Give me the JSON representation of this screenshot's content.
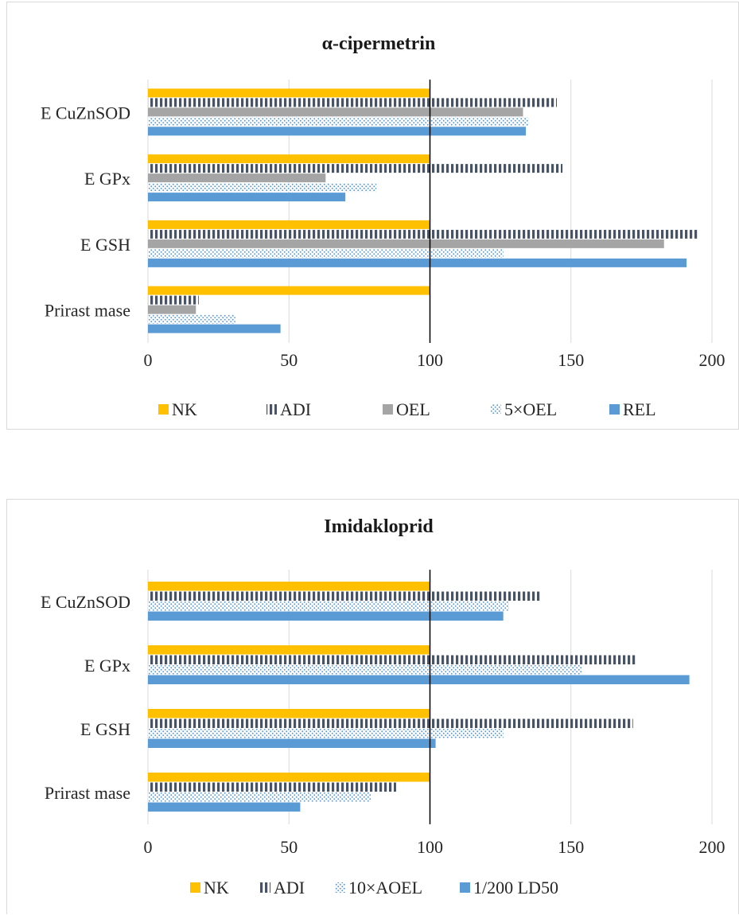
{
  "colors": {
    "NK": "#ffc000",
    "ADI": "#44546a",
    "OEL": "#a5a5a5",
    "dotted": "#5b9bd5",
    "blue": "#5b9bd5",
    "grid": "#d9d9d9",
    "refline": "#000000"
  },
  "chart_data": [
    {
      "type": "bar",
      "orientation": "horizontal",
      "title": "α-cipermetrin",
      "categories": [
        "E CuZnSOD",
        "E GPx",
        "E GSH",
        "Prirast mase"
      ],
      "xlim": [
        0,
        200
      ],
      "xticks": [
        0,
        50,
        100,
        150,
        200
      ],
      "xtick_labels": [
        "0",
        "50",
        "100",
        "150",
        "200"
      ],
      "grid": true,
      "reference_line": 100,
      "legend_position": "bottom",
      "series": [
        {
          "name": "NK",
          "pattern": "solid-yellow",
          "values": [
            100,
            100,
            100,
            100
          ]
        },
        {
          "name": "ADI",
          "pattern": "vertical-stripes",
          "values": [
            145,
            147,
            195,
            18
          ]
        },
        {
          "name": "OEL",
          "pattern": "solid-gray",
          "values": [
            133,
            63,
            183,
            17
          ]
        },
        {
          "name": "5×OEL",
          "pattern": "dots",
          "values": [
            135,
            81,
            126,
            31
          ]
        },
        {
          "name": "REL",
          "pattern": "solid-blue",
          "values": [
            134,
            70,
            191,
            47
          ]
        }
      ]
    },
    {
      "type": "bar",
      "orientation": "horizontal",
      "title": "Imidakloprid",
      "categories": [
        "E CuZnSOD",
        "E GPx",
        "E GSH",
        "Prirast mase"
      ],
      "xlim": [
        0,
        200
      ],
      "xticks": [
        0,
        50,
        100,
        150,
        200
      ],
      "xtick_labels": [
        "0",
        "50",
        "100",
        "150",
        "200"
      ],
      "grid": true,
      "reference_line": 100,
      "legend_position": "bottom",
      "series": [
        {
          "name": "NK",
          "pattern": "solid-yellow",
          "values": [
            100,
            100,
            100,
            100
          ]
        },
        {
          "name": "ADI",
          "pattern": "vertical-stripes",
          "values": [
            139,
            173,
            172,
            88
          ]
        },
        {
          "name": "10×AOEL",
          "pattern": "dots",
          "values": [
            128,
            154,
            126,
            79
          ]
        },
        {
          "name": "1/200 LD50",
          "pattern": "solid-blue",
          "values": [
            126,
            192,
            102,
            54
          ]
        }
      ]
    }
  ]
}
